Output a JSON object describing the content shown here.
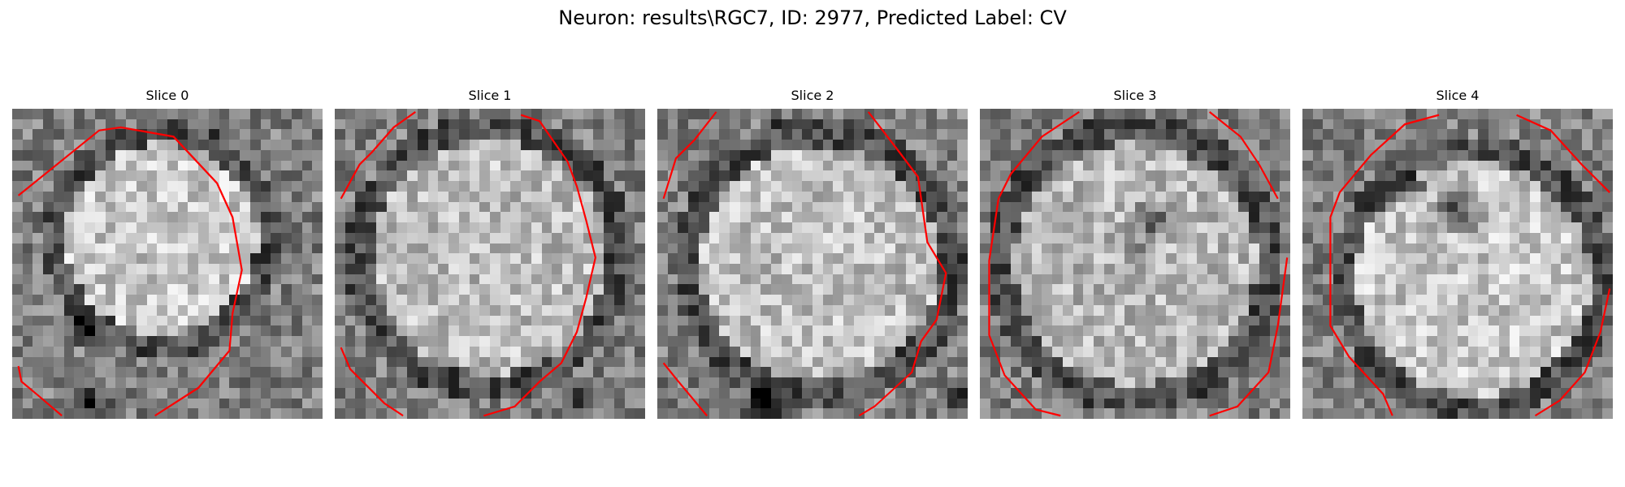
{
  "title": "Neuron: results\\RGC7, ID: 2977, Predicted Label: CV",
  "contour_color": "#ff0000",
  "colormap": "gray",
  "slices": [
    {
      "label": "Slice 0"
    },
    {
      "label": "Slice 1"
    },
    {
      "label": "Slice 2"
    },
    {
      "label": "Slice 3"
    },
    {
      "label": "Slice 4"
    }
  ]
}
